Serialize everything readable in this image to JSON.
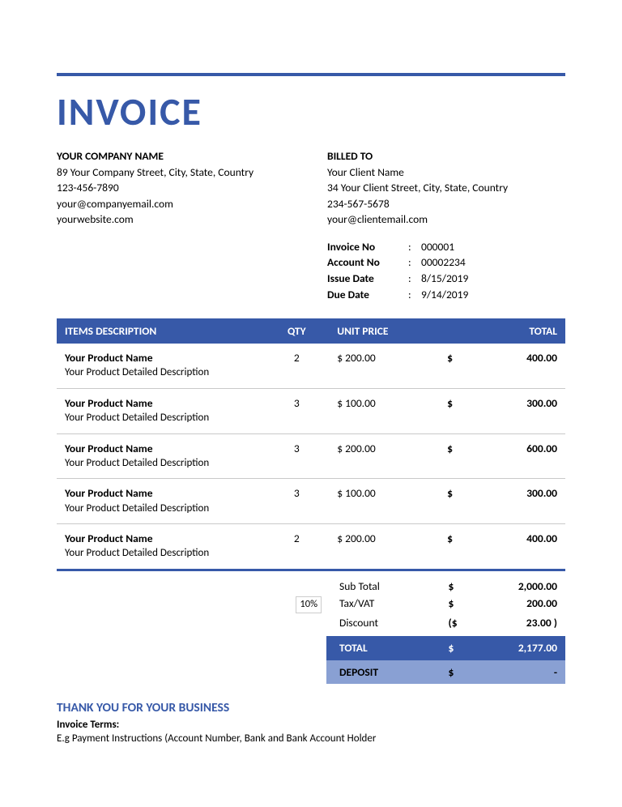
{
  "colors": {
    "accent": "#3759a8",
    "accent_light": "#89a0d3",
    "row_border": "#c9c9c9",
    "text": "#000000",
    "background": "#ffffff"
  },
  "title": "INVOICE",
  "company": {
    "heading": "YOUR COMPANY NAME",
    "address": "89 Your Company Street, City, State, Country",
    "phone": "123-456-7890",
    "email": "your@companyemail.com",
    "website": "yourwebsite.com"
  },
  "client": {
    "heading": "BILLED TO",
    "name": "Your Client Name",
    "address": "34 Your Client Street, City, State, Country",
    "phone": "234-567-5678",
    "email": "your@clientemail.com"
  },
  "meta": {
    "rows": [
      {
        "label": "Invoice No",
        "value": "000001"
      },
      {
        "label": "Account No",
        "value": "00002234"
      },
      {
        "label": "Issue Date",
        "value": "8/15/2019"
      },
      {
        "label": "Due Date",
        "value": "9/14/2019"
      }
    ],
    "separator": ":"
  },
  "items_table": {
    "columns": {
      "desc": "ITEMS DESCRIPTION",
      "qty": "QTY",
      "unit": "UNIT PRICE",
      "total": "TOTAL"
    },
    "rows": [
      {
        "name": "Your Product Name",
        "desc": "Your Product Detailed Description",
        "qty": "2",
        "unit": "$ 200.00",
        "cur": "$",
        "total": "400.00"
      },
      {
        "name": "Your Product Name",
        "desc": "Your Product Detailed Description",
        "qty": "3",
        "unit": "$ 100.00",
        "cur": "$",
        "total": "300.00"
      },
      {
        "name": "Your Product Name",
        "desc": "Your Product Detailed Description",
        "qty": "3",
        "unit": "$ 200.00",
        "cur": "$",
        "total": "600.00"
      },
      {
        "name": "Your Product Name",
        "desc": "Your Product Detailed Description",
        "qty": "3",
        "unit": "$ 100.00",
        "cur": "$",
        "total": "300.00"
      },
      {
        "name": "Your Product Name",
        "desc": "Your Product Detailed Description",
        "qty": "2",
        "unit": "$ 200.00",
        "cur": "$",
        "total": "400.00"
      }
    ]
  },
  "totals": {
    "subtotal": {
      "label": "Sub Total",
      "cur": "$",
      "value": "2,000.00"
    },
    "tax": {
      "pct": "10%",
      "label": "Tax/VAT",
      "cur": "$",
      "value": "200.00"
    },
    "discount": {
      "label": "Discount",
      "cur": "($",
      "value": "23.00 )"
    },
    "total": {
      "label": "TOTAL",
      "cur": "$",
      "value": "2,177.00"
    },
    "deposit": {
      "label": "DEPOSIT",
      "cur": "$",
      "value": "-"
    }
  },
  "footer": {
    "thanks": "THANK YOU FOR YOUR BUSINESS",
    "terms_label": "Invoice Terms:",
    "terms_text": "E.g Payment Instructions (Account Number, Bank and Bank Account Holder"
  }
}
